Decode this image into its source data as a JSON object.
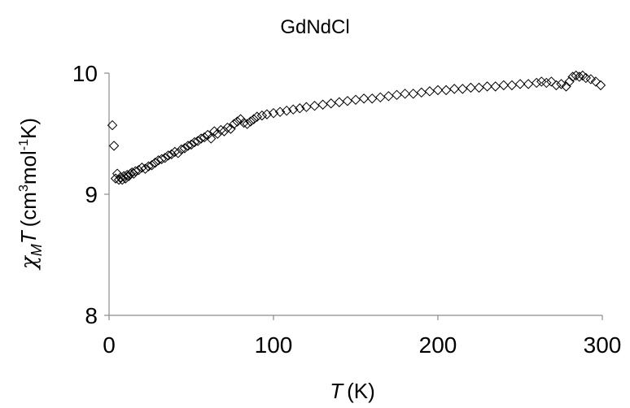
{
  "chart_data": {
    "type": "scatter",
    "title": "GdNdCl",
    "xlabel": {
      "italic": "T",
      "rest": "(K)"
    },
    "ylabel": {
      "chi": "χ",
      "sub": "M",
      "italic": "T",
      "rest1": "(cm",
      "sup1": "3",
      "rest2": "mol",
      "sup2": "-1",
      "rest3": "K)"
    },
    "xlim": [
      0,
      300
    ],
    "ylim": [
      8,
      10
    ],
    "xticks": [
      0,
      100,
      200,
      300
    ],
    "yticks": [
      8,
      9,
      10
    ],
    "xtick_labels": [
      "0",
      "100",
      "200",
      "300"
    ],
    "ytick_labels": [
      "8",
      "9",
      "10"
    ],
    "marker": "diamond-open",
    "grid": false,
    "series": [
      {
        "x": [
          2,
          3,
          4,
          5,
          6,
          7,
          8,
          9,
          10,
          11,
          12,
          13,
          14,
          15,
          16,
          18,
          20,
          22,
          24,
          26,
          28,
          30,
          32,
          34,
          36,
          38,
          40,
          42,
          44,
          46,
          48,
          50,
          52,
          54,
          56,
          58,
          60,
          62,
          64,
          66,
          68,
          70,
          72,
          74,
          76,
          78,
          80,
          82,
          84,
          86,
          88,
          90,
          93,
          96,
          100,
          104,
          108,
          112,
          116,
          120,
          125,
          130,
          135,
          140,
          145,
          150,
          155,
          160,
          165,
          170,
          175,
          180,
          185,
          190,
          195,
          200,
          205,
          210,
          215,
          220,
          225,
          230,
          235,
          240,
          245,
          250,
          255,
          260,
          263,
          266,
          269,
          272,
          275,
          278,
          280,
          282,
          284,
          286,
          288,
          290,
          293,
          296,
          299
        ],
        "y": [
          9.57,
          9.4,
          9.13,
          9.17,
          9.12,
          9.14,
          9.12,
          9.15,
          9.13,
          9.16,
          9.15,
          9.17,
          9.18,
          9.17,
          9.19,
          9.2,
          9.22,
          9.21,
          9.23,
          9.24,
          9.26,
          9.28,
          9.29,
          9.3,
          9.32,
          9.33,
          9.35,
          9.34,
          9.37,
          9.38,
          9.4,
          9.41,
          9.43,
          9.44,
          9.46,
          9.47,
          9.49,
          9.46,
          9.52,
          9.5,
          9.53,
          9.52,
          9.55,
          9.54,
          9.58,
          9.6,
          9.62,
          9.59,
          9.58,
          9.6,
          9.62,
          9.64,
          9.65,
          9.66,
          9.67,
          9.68,
          9.69,
          9.7,
          9.71,
          9.72,
          9.73,
          9.74,
          9.75,
          9.76,
          9.77,
          9.78,
          9.79,
          9.79,
          9.8,
          9.81,
          9.82,
          9.83,
          9.83,
          9.84,
          9.85,
          9.86,
          9.86,
          9.87,
          9.87,
          9.88,
          9.88,
          9.89,
          9.89,
          9.9,
          9.9,
          9.91,
          9.91,
          9.92,
          9.93,
          9.92,
          9.93,
          9.9,
          9.91,
          9.89,
          9.93,
          9.97,
          9.98,
          9.97,
          9.98,
          9.96,
          9.95,
          9.93,
          9.9
        ]
      }
    ]
  }
}
